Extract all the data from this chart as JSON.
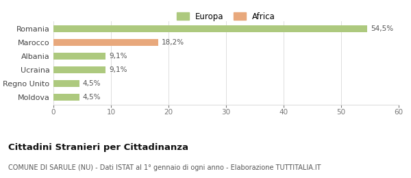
{
  "categories": [
    "Moldova",
    "Regno Unito",
    "Ucraina",
    "Albania",
    "Marocco",
    "Romania"
  ],
  "values": [
    4.5,
    4.5,
    9.1,
    9.1,
    18.2,
    54.5
  ],
  "labels": [
    "4,5%",
    "4,5%",
    "9,1%",
    "9,1%",
    "18,2%",
    "54,5%"
  ],
  "colors": [
    "#adc97e",
    "#adc97e",
    "#adc97e",
    "#adc97e",
    "#e8a87c",
    "#adc97e"
  ],
  "legend_items": [
    {
      "label": "Europa",
      "color": "#adc97e"
    },
    {
      "label": "Africa",
      "color": "#e8a87c"
    }
  ],
  "xlim": [
    0,
    60
  ],
  "xticks": [
    0,
    10,
    20,
    30,
    40,
    50,
    60
  ],
  "title_bold": "Cittadini Stranieri per Cittadinanza",
  "subtitle": "COMUNE DI SARULE (NU) - Dati ISTAT al 1° gennaio di ogni anno - Elaborazione TUTTITALIA.IT",
  "bar_height": 0.5,
  "background_color": "#ffffff",
  "grid_color": "#dddddd",
  "label_fontsize": 7.5,
  "tick_fontsize": 7.5,
  "ylabel_fontsize": 8,
  "title_fontsize": 9.5,
  "subtitle_fontsize": 7,
  "legend_fontsize": 8.5
}
